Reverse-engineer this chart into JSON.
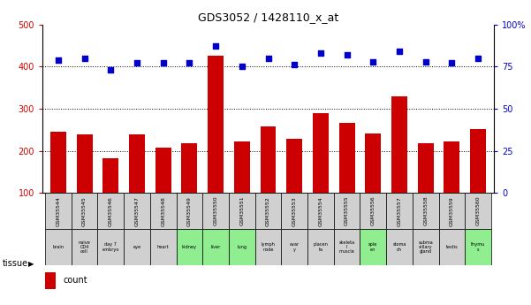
{
  "title": "GDS3052 / 1428110_x_at",
  "gsm_labels": [
    "GSM35544",
    "GSM35545",
    "GSM35546",
    "GSM35547",
    "GSM35548",
    "GSM35549",
    "GSM35550",
    "GSM35551",
    "GSM35552",
    "GSM35553",
    "GSM35554",
    "GSM35555",
    "GSM35556",
    "GSM35557",
    "GSM35558",
    "GSM35559",
    "GSM35560"
  ],
  "tissue_labels": [
    "brain",
    "naive\nCD4\ncell",
    "day 7\nembryо",
    "eye",
    "heart",
    "kidney",
    "liver",
    "lung",
    "lymph\nnode",
    "ovar\ny",
    "placen\nta",
    "skeleta\nl\nmuscle",
    "sple\nen",
    "stoma\nch",
    "subma\nxillary\ngland",
    "testis",
    "thymu\ns"
  ],
  "tissue_colors": [
    "#d0d0d0",
    "#d0d0d0",
    "#d0d0d0",
    "#d0d0d0",
    "#d0d0d0",
    "#90ee90",
    "#90ee90",
    "#90ee90",
    "#d0d0d0",
    "#d0d0d0",
    "#d0d0d0",
    "#d0d0d0",
    "#90ee90",
    "#d0d0d0",
    "#d0d0d0",
    "#d0d0d0",
    "#90ee90"
  ],
  "count_values": [
    245,
    238,
    182,
    240,
    207,
    218,
    425,
    222,
    258,
    228,
    290,
    267,
    241,
    330,
    218,
    222,
    251
  ],
  "percentile_values": [
    79,
    80,
    73,
    77,
    77,
    77,
    87,
    75,
    80,
    76,
    83,
    82,
    78,
    84,
    78,
    77,
    80
  ],
  "count_color": "#cc0000",
  "percentile_color": "#0000cc",
  "bar_width": 0.6,
  "ylim_left": [
    100,
    500
  ],
  "ylim_right": [
    0,
    100
  ],
  "yticks_left": [
    100,
    200,
    300,
    400,
    500
  ],
  "yticks_right": [
    0,
    25,
    50,
    75,
    100
  ],
  "ytick_labels_right": [
    "0",
    "25",
    "50",
    "75",
    "100%"
  ],
  "grid_values": [
    200,
    300,
    400
  ],
  "gsm_cell_color": "#d0d0d0",
  "background_color": "#ffffff"
}
